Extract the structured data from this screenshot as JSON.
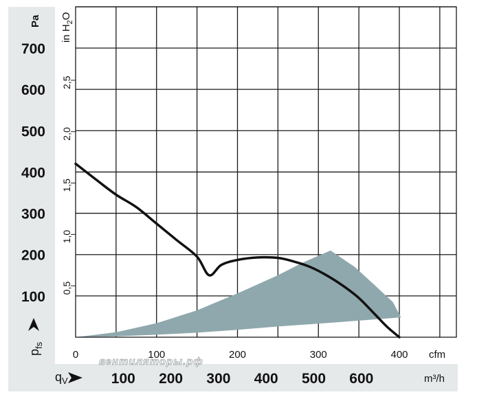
{
  "chart_data": {
    "type": "line",
    "x": [
      0,
      25,
      50,
      75,
      100,
      125,
      150,
      165,
      180,
      200,
      225,
      250,
      270,
      290,
      310,
      330,
      350,
      370,
      385,
      400
    ],
    "series": [
      {
        "values": [
          420,
          382,
          345,
          315,
          275,
          235,
          195,
          150,
          175,
          187,
          193,
          192,
          183,
          170,
          150,
          125,
          95,
          55,
          25,
          0
        ]
      }
    ],
    "operating_region": {
      "lower_boundary": [
        [
          0,
          0
        ],
        [
          50,
          2
        ],
        [
          100,
          6
        ],
        [
          150,
          11
        ],
        [
          200,
          18
        ],
        [
          250,
          26
        ],
        [
          300,
          33
        ],
        [
          350,
          40
        ],
        [
          402,
          48
        ]
      ],
      "upper_boundary": [
        [
          0,
          0
        ],
        [
          50,
          12
        ],
        [
          100,
          34
        ],
        [
          150,
          65
        ],
        [
          200,
          106
        ],
        [
          250,
          150
        ],
        [
          280,
          180
        ],
        [
          315,
          210
        ]
      ],
      "outer_edge": [
        [
          315,
          210
        ],
        [
          345,
          170
        ],
        [
          370,
          125
        ],
        [
          392,
          85
        ],
        [
          402,
          70
        ]
      ]
    },
    "color_curve": "#111111",
    "color_region": "#8fa8ad",
    "xlim": [
      0,
      470
    ],
    "ylim": [
      0,
      800
    ],
    "grid": true,
    "y_left_ticks": [
      "100",
      "200",
      "300",
      "400",
      "500",
      "600",
      "700"
    ],
    "y_left_tick_values": [
      100,
      200,
      300,
      400,
      500,
      600,
      700
    ],
    "y_left_unit": "Pa",
    "y_left_symbol_main": "p",
    "y_left_symbol_sub": "fs",
    "y_right_ticks": [
      "0,5",
      "1,0",
      "1,5",
      "2,0",
      "2,5"
    ],
    "y_right_tick_values": [
      0.5,
      1.0,
      1.5,
      2.0,
      2.5
    ],
    "y_right_unit_main": "in H",
    "y_right_unit_sub": "2",
    "y_right_unit_end": "O",
    "x_cfm_ticks": [
      "0",
      "100",
      "200",
      "300",
      "400"
    ],
    "x_cfm_tick_values": [
      0,
      100,
      200,
      300,
      400
    ],
    "x_cfm_unit": "cfm",
    "x_m3h_ticks": [
      "100",
      "200",
      "300",
      "400",
      "500",
      "600"
    ],
    "x_m3h_tick_values": [
      100,
      200,
      300,
      400,
      500,
      600
    ],
    "x_m3h_unit": "m³/h",
    "x_symbol_main": "q",
    "x_symbol_sub": "V",
    "watermark": "вентиляторы.рф"
  }
}
